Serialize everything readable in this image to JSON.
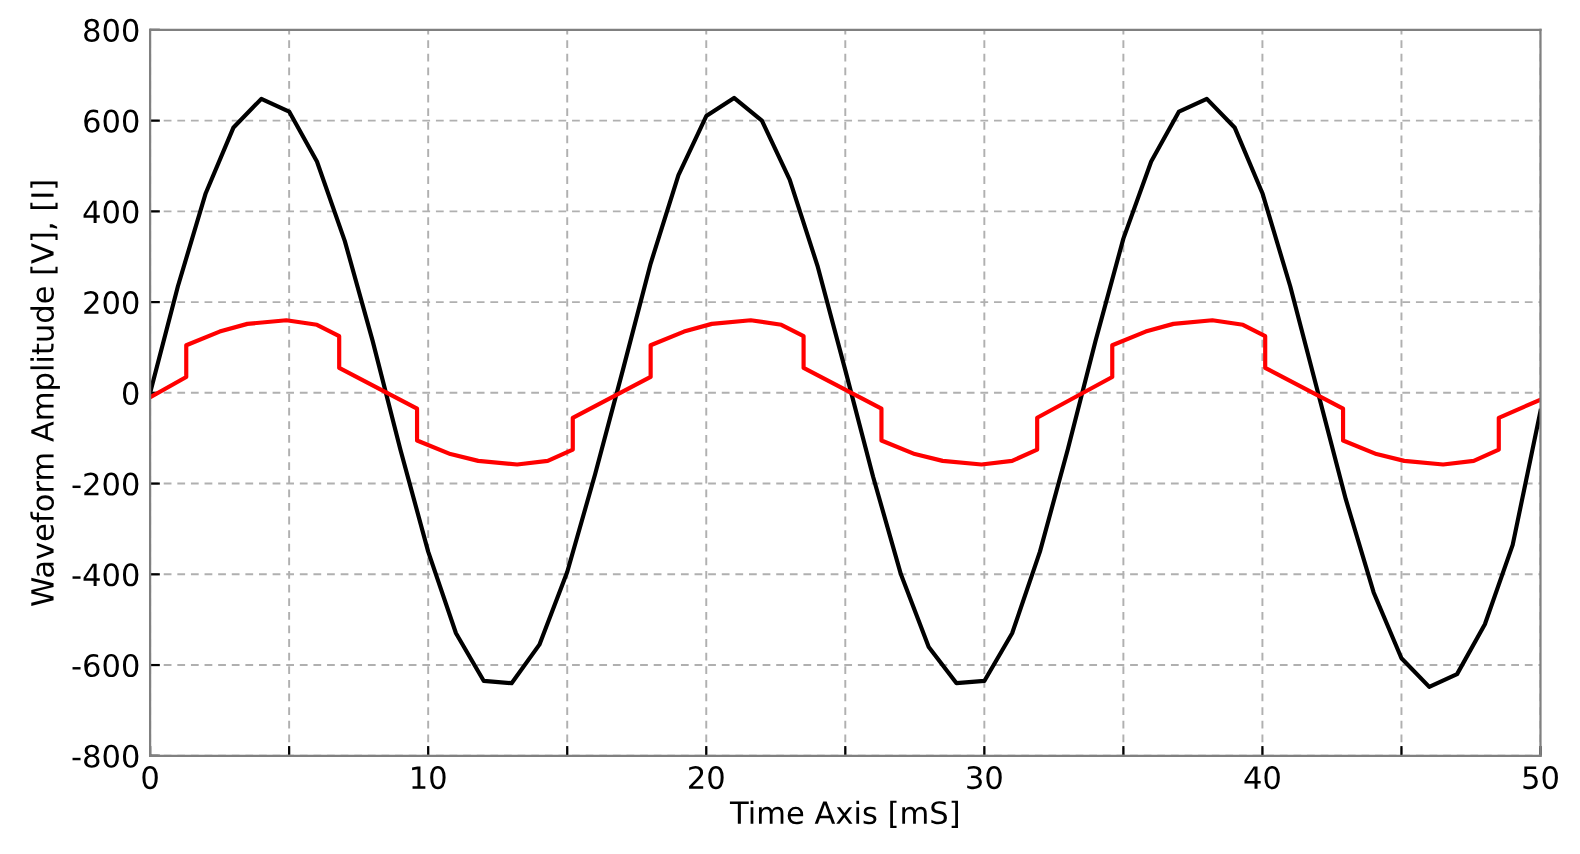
{
  "chart_data": {
    "type": "line",
    "xlabel": "Time Axis [mS]",
    "ylabel": "Waveform Amplitude [V], [I]",
    "xlim": [
      0,
      50
    ],
    "ylim": [
      -800,
      800
    ],
    "xticks": [
      0,
      {
        "value": 5,
        "label": null
      },
      10,
      {
        "value": 15,
        "label": null
      },
      20,
      {
        "value": 25,
        "label": null
      },
      30,
      {
        "value": 35,
        "label": null
      },
      40,
      {
        "value": 45,
        "label": null
      },
      50
    ],
    "yticks": [
      -800,
      -600,
      -400,
      -200,
      0,
      200,
      400,
      600,
      800
    ],
    "grid": true,
    "marker": "none",
    "line_style": "solid",
    "series": [
      {
        "color": "#000000",
        "x": [
          0,
          1,
          2,
          3,
          4,
          5,
          6,
          7,
          8,
          9,
          10,
          11,
          12,
          13,
          14,
          15,
          16,
          17,
          18,
          19,
          20,
          21,
          22,
          23,
          24,
          25,
          26,
          27,
          28,
          29,
          30,
          31,
          32,
          33,
          34,
          35,
          36,
          37,
          38,
          39,
          40,
          41,
          42,
          43,
          44,
          45,
          46,
          47,
          48,
          49,
          50
        ],
        "values": [
          0,
          235,
          440,
          585,
          648,
          620,
          510,
          335,
          115,
          -125,
          -350,
          -530,
          -635,
          -640,
          -555,
          -395,
          -180,
          50,
          285,
          480,
          610,
          650,
          600,
          470,
          280,
          50,
          -185,
          -400,
          -560,
          -640,
          -635,
          -530,
          -350,
          -125,
          115,
          340,
          510,
          620,
          648,
          585,
          440,
          235,
          0,
          -235,
          -440,
          -585,
          -648,
          -620,
          -510,
          -335,
          -40
        ]
      },
      {
        "color": "#ff0000",
        "x": [
          0,
          1.3,
          1.3,
          2.5,
          3.5,
          4.9,
          6.0,
          6.8,
          6.8,
          9.6,
          9.6,
          10.8,
          11.8,
          13.2,
          14.3,
          15.2,
          15.2,
          18.0,
          18.0,
          19.2,
          20.2,
          21.6,
          22.7,
          23.5,
          23.5,
          26.3,
          26.3,
          27.5,
          28.5,
          29.9,
          31.0,
          31.9,
          31.9,
          34.6,
          34.6,
          35.8,
          36.8,
          38.2,
          39.3,
          40.1,
          40.1,
          42.9,
          42.9,
          44.1,
          45.1,
          46.5,
          47.6,
          48.5,
          48.5,
          50
        ],
        "values": [
          -10,
          35,
          105,
          135,
          152,
          160,
          150,
          125,
          55,
          -35,
          -105,
          -135,
          -150,
          -158,
          -150,
          -125,
          -55,
          35,
          105,
          135,
          152,
          160,
          150,
          125,
          55,
          -35,
          -105,
          -135,
          -150,
          -158,
          -150,
          -125,
          -55,
          35,
          105,
          135,
          152,
          160,
          150,
          125,
          55,
          -35,
          -105,
          -135,
          -150,
          -158,
          -150,
          -125,
          -55,
          -15
        ]
      }
    ]
  }
}
